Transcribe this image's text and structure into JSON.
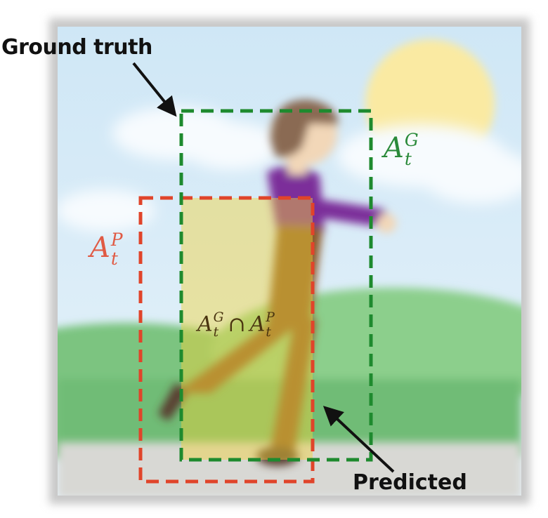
{
  "labels": {
    "ground_truth": "Ground truth",
    "predicted": "Predicted"
  },
  "math": {
    "ground_truth": {
      "base": "A",
      "sup": "G",
      "sub": "t"
    },
    "predicted": {
      "base": "A",
      "sup": "P",
      "sub": "t"
    },
    "intersection": {
      "left": {
        "base": "A",
        "sup": "G",
        "sub": "t"
      },
      "op": "∩",
      "right": {
        "base": "A",
        "sup": "P",
        "sub": "t"
      }
    }
  },
  "colors": {
    "ground_truth_box": "#1e8a2e",
    "predicted_box": "#e0442a",
    "intersection_fill": "#f2d23a",
    "sky": "#d6ecf8",
    "grass": "#74c27a",
    "frame": "#c8c8c8",
    "arrow": "#111111"
  },
  "scene": {
    "elements": [
      "sun",
      "clouds",
      "hills",
      "road",
      "walking-person"
    ]
  }
}
